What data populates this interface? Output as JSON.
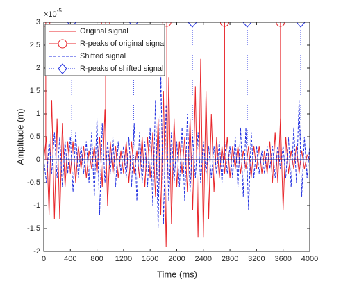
{
  "chart_data": {
    "type": "line",
    "xlabel": "Time (ms)",
    "ylabel": "Amplitude (m)",
    "y_multiplier_base": "×10",
    "y_multiplier_exponent": "-5",
    "xlim": [
      0,
      4000
    ],
    "ylim": [
      -2,
      3
    ],
    "xticks": [
      0,
      400,
      800,
      1200,
      1600,
      2000,
      2400,
      2800,
      3200,
      3600,
      4000
    ],
    "yticks": [
      -2,
      -1.5,
      -1,
      -0.5,
      0,
      0.5,
      1,
      1.5,
      2,
      2.5,
      3
    ],
    "legend": "upper left",
    "x": [
      0,
      40,
      80,
      120,
      160,
      200,
      240,
      280,
      320,
      360,
      400,
      440,
      480,
      520,
      560,
      600,
      640,
      680,
      720,
      760,
      800,
      840,
      880,
      920,
      960,
      1000,
      1040,
      1080,
      1120,
      1160,
      1200,
      1240,
      1280,
      1320,
      1360,
      1400,
      1440,
      1480,
      1520,
      1560,
      1600,
      1640,
      1680,
      1720,
      1760,
      1800,
      1840,
      1880,
      1920,
      1960,
      2000,
      2040,
      2080,
      2120,
      2160,
      2200,
      2240,
      2280,
      2320,
      2360,
      2400,
      2440,
      2480,
      2520,
      2560,
      2600,
      2640,
      2680,
      2720,
      2760,
      2800,
      2840,
      2880,
      2920,
      2960,
      3000,
      3040,
      3080,
      3120,
      3160,
      3200,
      3240,
      3280,
      3320,
      3360,
      3400,
      3440,
      3480,
      3520,
      3560,
      3600,
      3640,
      3680,
      3720,
      3760,
      3800,
      3840,
      3880,
      3920,
      3960,
      4000
    ],
    "series": [
      {
        "name": "Original signal",
        "color": "#e8262b",
        "style": "solid",
        "values": [
          0,
          0.5,
          -1.2,
          1.3,
          -1.3,
          0.9,
          -1.3,
          0.8,
          -0.6,
          0.4,
          -0.3,
          0.4,
          -0.5,
          0.3,
          -0.2,
          0.3,
          -0.4,
          0.2,
          -0.2,
          0.3,
          -0.3,
          0.5,
          -0.6,
          1.1,
          -1.0,
          0.4,
          -0.3,
          0.3,
          -0.4,
          0.2,
          -0.3,
          0.4,
          -0.5,
          0.4,
          -0.3,
          0.2,
          -0.4,
          0.5,
          -0.6,
          0.5,
          -0.4,
          0.6,
          -0.8,
          0.9,
          -1.2,
          1.5,
          -1.9,
          1.8,
          -1.4,
          0.9,
          -0.6,
          0.4,
          -0.3,
          0.5,
          -0.7,
          0.9,
          -1.1,
          1.6,
          -1.7,
          2.2,
          -1.7,
          1.5,
          -1.3,
          1.0,
          -0.7,
          0.5,
          -0.4,
          0.3,
          -0.3,
          0.5,
          -0.4,
          0.3,
          -0.2,
          0.3,
          -0.3,
          0.2,
          -0.2,
          0.3,
          -0.4,
          0.3,
          -0.2,
          0.3,
          -0.3,
          0.2,
          -0.3,
          0.4,
          -0.5,
          0.6,
          -0.5,
          0.9,
          -1.1,
          0.5,
          -0.3,
          0.2,
          -0.2,
          0.3,
          -0.3,
          0.2,
          -0.2,
          0.1,
          0
        ]
      },
      {
        "name": "R-peaks of original signal",
        "color": "#e8262b",
        "style": "solid",
        "marker": "circle",
        "x": [
          30,
          930,
          1850,
          2720,
          3560
        ],
        "values": [
          3,
          3,
          3,
          3,
          3
        ]
      },
      {
        "name": "Shifted signal",
        "color": "#1f2ee0",
        "style": "dashed",
        "values": [
          0,
          -0.5,
          0.4,
          -0.3,
          0.6,
          -0.4,
          0.5,
          -0.6,
          0.4,
          -0.3,
          0.5,
          -0.7,
          0.6,
          -0.4,
          0.3,
          -0.3,
          0.4,
          -0.5,
          0.6,
          -0.8,
          0.9,
          -1.2,
          0.8,
          -0.5,
          0.4,
          -0.3,
          0.5,
          -0.6,
          0.4,
          -0.3,
          0.3,
          -0.4,
          0.5,
          -0.6,
          0.8,
          -0.9,
          0.6,
          -0.5,
          0.4,
          -0.6,
          0.7,
          -1.0,
          1.3,
          -1.5,
          1.9,
          -1.4,
          1.2,
          -0.9,
          0.6,
          -0.5,
          0.4,
          -0.6,
          0.7,
          -0.9,
          1.0,
          -0.7,
          0.5,
          -0.4,
          0.6,
          -0.5,
          0.4,
          -0.3,
          0.3,
          -0.4,
          0.3,
          -0.3,
          0.4,
          -0.5,
          0.4,
          -0.3,
          0.3,
          -0.4,
          0.5,
          -0.6,
          0.7,
          -0.8,
          0.7,
          -1.1,
          0.6,
          -0.4,
          0.3,
          -0.3,
          0.2,
          -0.3,
          0.3,
          -0.2,
          0.3,
          -0.4,
          0.3,
          -0.2,
          0.3,
          -0.4,
          0.5,
          -0.6,
          0.7,
          -0.5,
          1.3,
          -0.8,
          0.5,
          -0.4,
          0.3
        ]
      },
      {
        "name": "R-peaks of shifted signal",
        "color": "#1f2ee0",
        "style": "dotted",
        "marker": "diamond",
        "x": [
          420,
          1350,
          2235,
          3060,
          3865
        ],
        "values": [
          3,
          3,
          3,
          3,
          3
        ]
      }
    ]
  }
}
